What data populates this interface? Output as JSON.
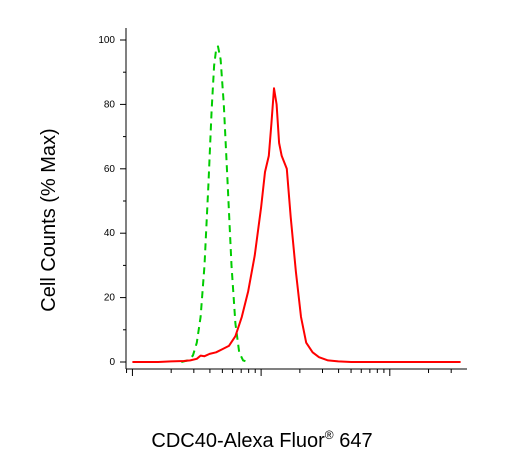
{
  "chart_data": {
    "type": "line",
    "title": "",
    "xlabel": "CDC40-Alexa Fluor",
    "xlabel_superscript": "®",
    "xlabel_suffix": " 647",
    "ylabel": "Cell Counts (% Max)",
    "ylim": [
      0,
      100
    ],
    "yticks": [
      "0",
      "20",
      "40",
      "60",
      "80",
      "100"
    ],
    "xscale": "log",
    "x_axis_tick_labels_shown": false,
    "grid": false,
    "legend": "none",
    "series": [
      {
        "color": "#00cc00",
        "line_style": "dashed",
        "points": [
          [
            0.38,
            0
          ],
          [
            0.43,
            0.5
          ],
          [
            0.47,
            2
          ],
          [
            0.5,
            6
          ],
          [
            0.53,
            14
          ],
          [
            0.56,
            30
          ],
          [
            0.59,
            55
          ],
          [
            0.615,
            78
          ],
          [
            0.635,
            92
          ],
          [
            0.65,
            97
          ],
          [
            0.665,
            98
          ],
          [
            0.685,
            94
          ],
          [
            0.71,
            80
          ],
          [
            0.74,
            55
          ],
          [
            0.77,
            30
          ],
          [
            0.8,
            12
          ],
          [
            0.83,
            3
          ],
          [
            0.86,
            0.5
          ],
          [
            0.9,
            0
          ]
        ]
      },
      {
        "color": "#ff0000",
        "line_style": "solid",
        "points": [
          [
            0.0,
            0
          ],
          [
            0.1,
            0
          ],
          [
            0.2,
            0
          ],
          [
            0.3,
            0.2
          ],
          [
            0.4,
            0.3
          ],
          [
            0.45,
            0.5
          ],
          [
            0.5,
            1
          ],
          [
            0.53,
            2
          ],
          [
            0.56,
            1.8
          ],
          [
            0.6,
            2.5
          ],
          [
            0.65,
            3
          ],
          [
            0.7,
            4
          ],
          [
            0.75,
            5
          ],
          [
            0.8,
            8
          ],
          [
            0.85,
            14
          ],
          [
            0.9,
            22
          ],
          [
            0.95,
            33
          ],
          [
            1.0,
            48
          ],
          [
            1.03,
            59
          ],
          [
            1.06,
            64
          ],
          [
            1.08,
            74
          ],
          [
            1.1,
            85
          ],
          [
            1.12,
            80
          ],
          [
            1.14,
            68
          ],
          [
            1.16,
            64
          ],
          [
            1.2,
            60
          ],
          [
            1.23,
            45
          ],
          [
            1.27,
            28
          ],
          [
            1.31,
            14
          ],
          [
            1.35,
            6
          ],
          [
            1.4,
            3
          ],
          [
            1.45,
            1.5
          ],
          [
            1.52,
            0.5
          ],
          [
            1.6,
            0.2
          ],
          [
            1.7,
            0
          ],
          [
            2.0,
            0
          ],
          [
            2.3,
            0
          ],
          [
            2.55,
            0
          ]
        ]
      }
    ],
    "xlim": [
      -0.05,
      2.6
    ]
  }
}
